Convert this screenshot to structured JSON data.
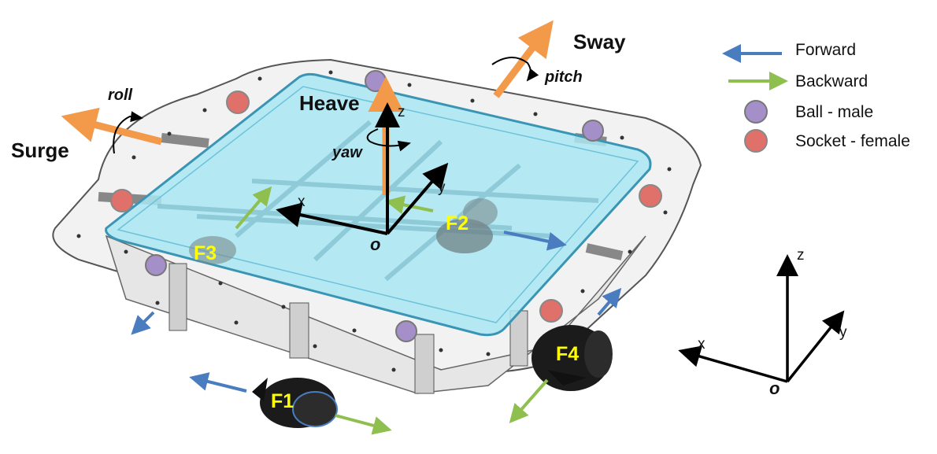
{
  "labels": {
    "surge": "Surge",
    "sway": "Sway",
    "heave": "Heave",
    "roll": "roll",
    "pitch": "pitch",
    "yaw": "yaw"
  },
  "thrusters": {
    "f1": "F1",
    "f2": "F2",
    "f3": "F3",
    "f4": "F4"
  },
  "body_axes": {
    "x": "x",
    "y": "y",
    "z": "z",
    "origin": "o"
  },
  "world_axes": {
    "x": "x",
    "y": "y",
    "z": "z",
    "origin": "o"
  },
  "legend": {
    "forward": "Forward",
    "backward": "Backward",
    "ball": "Ball - male",
    "socket": "Socket - female"
  },
  "colors": {
    "forward": "#4a7dc0",
    "backward": "#8fbf4f",
    "ball": "#a58fc9",
    "socket": "#e0706a",
    "dof_arrow": "#f39a4a",
    "water": "#a9e7f3",
    "label_f": "#ffff00"
  }
}
